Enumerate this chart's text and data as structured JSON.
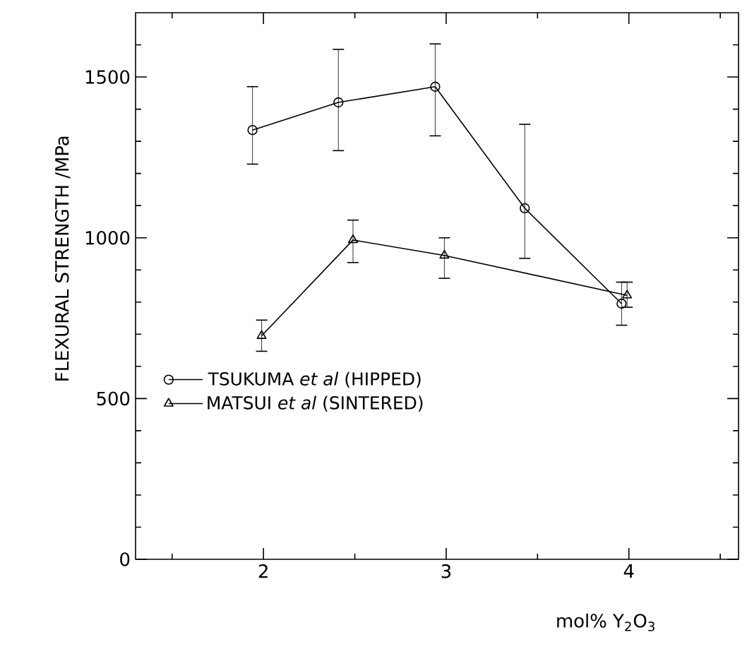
{
  "chart_data": {
    "type": "line",
    "xlabel": "mol% Y$_{2}$O$_{3}$",
    "ylabel": "FLEXURAL STRENGTH /MPa",
    "xlim": [
      1.3,
      4.6
    ],
    "ylim": [
      0,
      1700
    ],
    "xticks": [
      {
        "value": 1.5,
        "label": null
      },
      2,
      {
        "value": 2.5,
        "label": null
      },
      3,
      {
        "value": 3.5,
        "label": null
      },
      4,
      {
        "value": 4.5,
        "label": null
      }
    ],
    "yticks": [
      0,
      {
        "value": 100,
        "label": null
      },
      {
        "value": 200,
        "label": null
      },
      {
        "value": 300,
        "label": null
      },
      {
        "value": 400,
        "label": null
      },
      500,
      {
        "value": 600,
        "label": null
      },
      {
        "value": 700,
        "label": null
      },
      {
        "value": 800,
        "label": null
      },
      {
        "value": 900,
        "label": null
      },
      1000,
      {
        "value": 1100,
        "label": null
      },
      {
        "value": 1200,
        "label": null
      },
      {
        "value": 1300,
        "label": null
      },
      {
        "value": 1400,
        "label": null
      },
      1500,
      {
        "value": 1600,
        "label": null
      }
    ],
    "legend": "bottom left",
    "grid": false,
    "line_style": "solid",
    "series": [
      {
        "name": "TSUKUMA *et al* (HIPPED)",
        "color": "#000000",
        "marker": "circle",
        "x": [
          1.94,
          2.41,
          2.94,
          3.43,
          3.96
        ],
        "values": [
          1335,
          1421,
          1470,
          1092,
          795
        ],
        "errors": [
          [
            1229,
            1470
          ],
          [
            1271,
            1586
          ],
          [
            1317,
            1603
          ],
          [
            936,
            1353
          ],
          [
            728,
            862
          ]
        ]
      },
      {
        "name": "MATSUI *et al* (SINTERED)",
        "color": "#000000",
        "marker": "triangle",
        "x": [
          1.99,
          2.49,
          2.99,
          3.99
        ],
        "values": [
          695,
          993,
          945,
          821
        ],
        "errors": [
          [
            647,
            744
          ],
          [
            923,
            1055
          ],
          [
            874,
            1000
          ],
          [
            784,
            862
          ]
        ]
      }
    ]
  }
}
